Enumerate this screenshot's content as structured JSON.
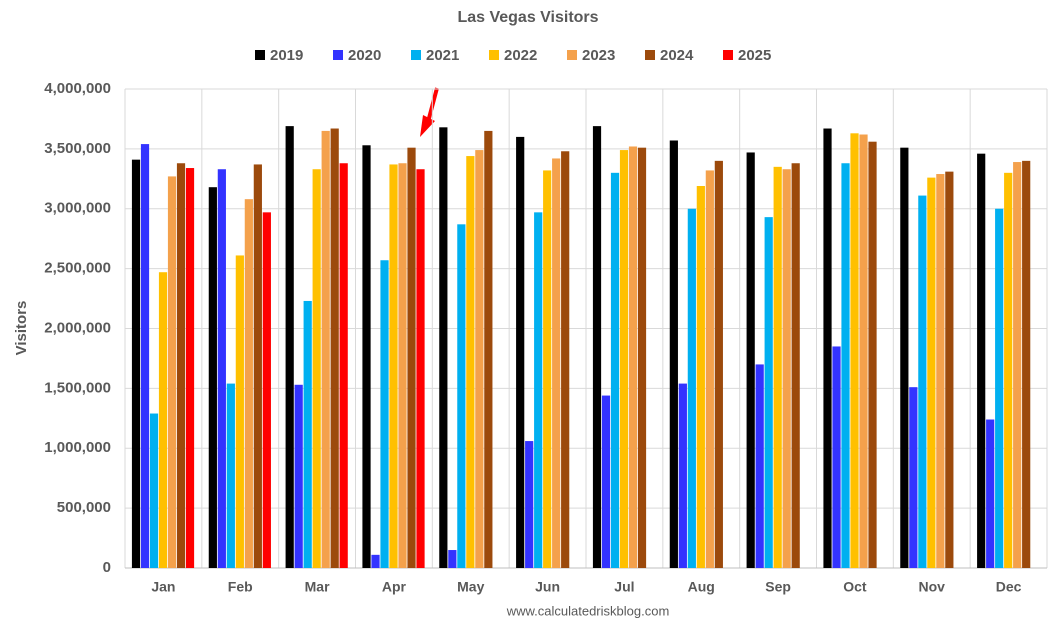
{
  "chart_data": {
    "type": "bar",
    "title": "Las Vegas Visitors",
    "y_label": "Visitors",
    "source": "www.calculatedriskblog.com",
    "categories": [
      "Jan",
      "Feb",
      "Mar",
      "Apr",
      "May",
      "Jun",
      "Jul",
      "Aug",
      "Sep",
      "Oct",
      "Nov",
      "Dec"
    ],
    "series": [
      {
        "name": "2019",
        "color": "#000000",
        "values": [
          3410000,
          3180000,
          3690000,
          3530000,
          3680000,
          3600000,
          3690000,
          3570000,
          3470000,
          3670000,
          3510000,
          3460000
        ]
      },
      {
        "name": "2020",
        "color": "#3333ff",
        "values": [
          3540000,
          3330000,
          1530000,
          110000,
          150000,
          1060000,
          1440000,
          1540000,
          1700000,
          1850000,
          1510000,
          1240000
        ]
      },
      {
        "name": "2021",
        "color": "#00b0f0",
        "values": [
          1290000,
          1540000,
          2230000,
          2570000,
          2870000,
          2970000,
          3300000,
          3000000,
          2930000,
          3380000,
          3110000,
          3000000
        ]
      },
      {
        "name": "2022",
        "color": "#ffc000",
        "values": [
          2470000,
          2610000,
          3330000,
          3370000,
          3440000,
          3320000,
          3490000,
          3190000,
          3350000,
          3630000,
          3260000,
          3300000
        ]
      },
      {
        "name": "2023",
        "color": "#f4a14c",
        "values": [
          3270000,
          3080000,
          3650000,
          3380000,
          3490000,
          3420000,
          3520000,
          3320000,
          3330000,
          3620000,
          3290000,
          3390000
        ]
      },
      {
        "name": "2024",
        "color": "#9c4a0c",
        "values": [
          3380000,
          3370000,
          3670000,
          3510000,
          3650000,
          3480000,
          3510000,
          3400000,
          3380000,
          3560000,
          3310000,
          3400000
        ]
      },
      {
        "name": "2025",
        "color": "#ff0000",
        "values": [
          3340000,
          2970000,
          3380000,
          3330000,
          null,
          null,
          null,
          null,
          null,
          null,
          null,
          null
        ]
      }
    ],
    "ylim": [
      0,
      4000000
    ],
    "yticks": [
      0,
      {
        "value": 500000,
        "label": "500,000"
      },
      {
        "value": 1000000,
        "label": "1,000,000"
      },
      {
        "value": 1500000,
        "label": "1,500,000"
      },
      {
        "value": 2000000,
        "label": "2,000,000"
      },
      {
        "value": 2500000,
        "label": "2,500,000"
      },
      {
        "value": 3000000,
        "label": "3,000,000"
      },
      {
        "value": 3500000,
        "label": "3,500,000"
      },
      {
        "value": 4000000,
        "label": "4,000,000"
      }
    ],
    "grid": true
  }
}
